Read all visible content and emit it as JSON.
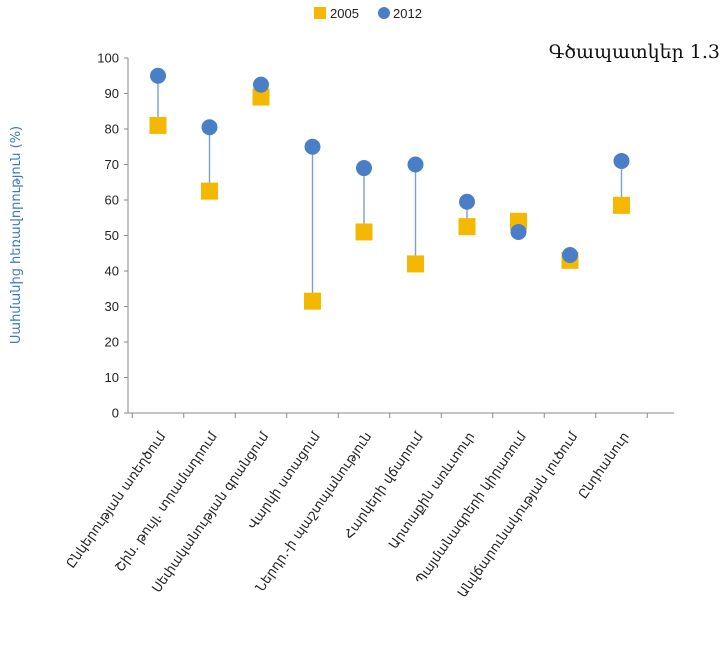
{
  "figure_label": "Գծապատկեր 1.3",
  "chart_data": {
    "type": "scatter",
    "title": "",
    "ylabel": "Սահմանից հեռավորություն (%)",
    "ylim": [
      0,
      100
    ],
    "yticks": [
      0,
      10,
      20,
      30,
      40,
      50,
      60,
      70,
      80,
      90,
      100
    ],
    "grid": false,
    "legend_position": "top-center",
    "categories": [
      "Ընկերության առեղծում",
      "Շին. թույլ. տրամադրում",
      "Սեփականության գրանցում",
      "Վարկի ստացում",
      "Ներդր.-ի պաշտպանություն",
      "Հարկերի վճարում",
      "Արտաքին առևտուր",
      "Պայմանագրերի կիրառում",
      "Անվճարունակության լուծում",
      "Ընդհանուր"
    ],
    "series": [
      {
        "name": "2005",
        "marker": "square",
        "color": "#f5b800",
        "values": [
          81,
          62.5,
          89,
          31.5,
          51,
          42,
          52.5,
          54,
          43,
          58.5
        ]
      },
      {
        "name": "2012",
        "marker": "circle",
        "color": "#4a7fc8",
        "values": [
          95,
          80.5,
          92.5,
          75,
          69,
          70,
          59.5,
          51,
          44.5,
          71
        ]
      }
    ],
    "connector_color": "#7aa0cf"
  }
}
